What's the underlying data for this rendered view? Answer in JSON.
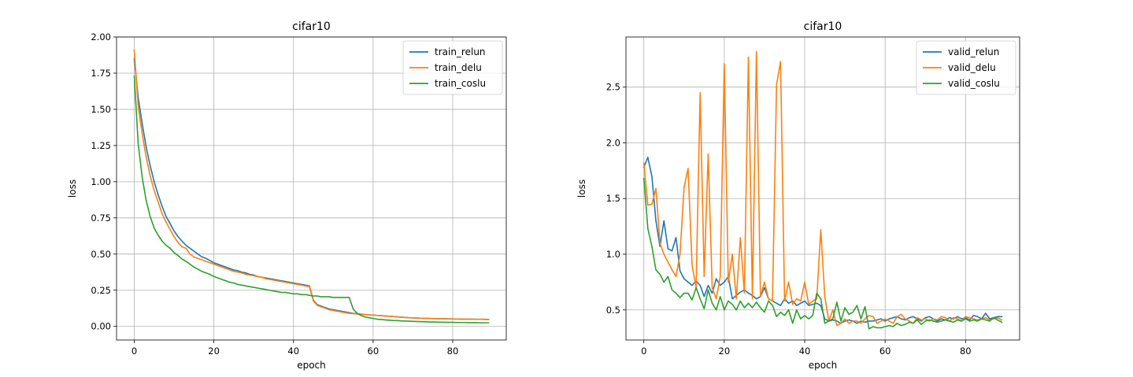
{
  "chart_data": [
    {
      "type": "line",
      "title": "cifar10",
      "xlabel": "epoch",
      "ylabel": "loss",
      "xlim": [
        -4.45,
        93.45
      ],
      "ylim": [
        -0.094,
        2.0
      ],
      "xticks": [
        0,
        20,
        40,
        60,
        80
      ],
      "xtick_labels": [
        "0",
        "20",
        "40",
        "60",
        "80"
      ],
      "yticks": [
        0.0,
        0.25,
        0.5,
        0.75,
        1.0,
        1.25,
        1.5,
        1.75,
        2.0
      ],
      "ytick_labels": [
        "0.00",
        "0.25",
        "0.50",
        "0.75",
        "1.00",
        "1.25",
        "1.50",
        "1.75",
        "2.00"
      ],
      "grid": true,
      "legend_position": "top-right",
      "series": [
        {
          "name": "train_relun",
          "color": "#1f77b4",
          "values": [
            1.85,
            1.58,
            1.4,
            1.24,
            1.11,
            1.0,
            0.91,
            0.83,
            0.76,
            0.71,
            0.66,
            0.62,
            0.59,
            0.56,
            0.54,
            0.52,
            0.5,
            0.48,
            0.47,
            0.455,
            0.44,
            0.43,
            0.42,
            0.41,
            0.4,
            0.39,
            0.385,
            0.375,
            0.37,
            0.36,
            0.355,
            0.345,
            0.34,
            0.335,
            0.33,
            0.325,
            0.32,
            0.315,
            0.31,
            0.305,
            0.3,
            0.295,
            0.29,
            0.285,
            0.28,
            0.18,
            0.15,
            0.14,
            0.13,
            0.12,
            0.115,
            0.11,
            0.105,
            0.1,
            0.095,
            0.09,
            0.088,
            0.085,
            0.082,
            0.08,
            0.078,
            0.076,
            0.074,
            0.072,
            0.07,
            0.068,
            0.066,
            0.064,
            0.062,
            0.06,
            0.059,
            0.058,
            0.057,
            0.056,
            0.055,
            0.054,
            0.054,
            0.053,
            0.053,
            0.052,
            0.052,
            0.051,
            0.051,
            0.05,
            0.05,
            0.05,
            0.049,
            0.049,
            0.049,
            0.048
          ]
        },
        {
          "name": "train_delu",
          "color": "#ff7f0e",
          "values": [
            1.91,
            1.52,
            1.33,
            1.17,
            1.04,
            0.94,
            0.86,
            0.78,
            0.72,
            0.67,
            0.62,
            0.58,
            0.55,
            0.54,
            0.5,
            0.48,
            0.47,
            0.46,
            0.45,
            0.44,
            0.43,
            0.42,
            0.41,
            0.4,
            0.39,
            0.38,
            0.375,
            0.37,
            0.36,
            0.355,
            0.35,
            0.345,
            0.34,
            0.33,
            0.325,
            0.32,
            0.315,
            0.31,
            0.305,
            0.3,
            0.295,
            0.29,
            0.285,
            0.28,
            0.275,
            0.175,
            0.145,
            0.135,
            0.125,
            0.115,
            0.11,
            0.105,
            0.1,
            0.095,
            0.09,
            0.088,
            0.086,
            0.084,
            0.082,
            0.08,
            0.078,
            0.076,
            0.074,
            0.072,
            0.07,
            0.068,
            0.066,
            0.064,
            0.062,
            0.06,
            0.059,
            0.058,
            0.057,
            0.056,
            0.055,
            0.054,
            0.053,
            0.053,
            0.052,
            0.052,
            0.051,
            0.051,
            0.05,
            0.05,
            0.05,
            0.049,
            0.049,
            0.049,
            0.048,
            0.048
          ]
        },
        {
          "name": "train_coslu",
          "color": "#2ca02c",
          "values": [
            1.73,
            1.26,
            1.03,
            0.87,
            0.76,
            0.68,
            0.63,
            0.59,
            0.56,
            0.54,
            0.51,
            0.49,
            0.465,
            0.45,
            0.43,
            0.41,
            0.395,
            0.38,
            0.37,
            0.36,
            0.345,
            0.335,
            0.325,
            0.315,
            0.305,
            0.3,
            0.29,
            0.285,
            0.28,
            0.275,
            0.27,
            0.265,
            0.26,
            0.255,
            0.25,
            0.245,
            0.24,
            0.235,
            0.235,
            0.23,
            0.225,
            0.225,
            0.22,
            0.22,
            0.215,
            0.21,
            0.21,
            0.205,
            0.205,
            0.205,
            0.2,
            0.2,
            0.2,
            0.2,
            0.2,
            0.12,
            0.09,
            0.075,
            0.065,
            0.06,
            0.055,
            0.05,
            0.048,
            0.045,
            0.043,
            0.041,
            0.04,
            0.038,
            0.037,
            0.036,
            0.035,
            0.034,
            0.033,
            0.032,
            0.031,
            0.03,
            0.03,
            0.029,
            0.029,
            0.028,
            0.028,
            0.027,
            0.027,
            0.027,
            0.026,
            0.026,
            0.026,
            0.025,
            0.025,
            0.025
          ]
        }
      ]
    },
    {
      "type": "line",
      "title": "cifar10",
      "xlabel": "epoch",
      "ylabel": "loss",
      "xlim": [
        -4.45,
        93.45
      ],
      "ylim": [
        0.23,
        2.95
      ],
      "xticks": [
        0,
        20,
        40,
        60,
        80
      ],
      "xtick_labels": [
        "0",
        "20",
        "40",
        "60",
        "80"
      ],
      "yticks": [
        0.5,
        1.0,
        1.5,
        2.0,
        2.5
      ],
      "ytick_labels": [
        "0.5",
        "1.0",
        "1.5",
        "2.0",
        "2.5"
      ],
      "grid": true,
      "legend_position": "top-right",
      "series": [
        {
          "name": "valid_relun",
          "color": "#1f77b4",
          "values": [
            1.78,
            1.87,
            1.7,
            1.3,
            1.07,
            1.3,
            1.05,
            1.03,
            1.15,
            0.85,
            0.78,
            0.75,
            0.72,
            0.76,
            0.72,
            0.62,
            0.72,
            0.65,
            0.78,
            0.72,
            0.75,
            0.8,
            0.6,
            0.63,
            0.66,
            0.68,
            0.65,
            0.63,
            0.6,
            0.62,
            0.7,
            0.6,
            0.58,
            0.56,
            0.54,
            0.6,
            0.56,
            0.58,
            0.54,
            0.56,
            0.58,
            0.54,
            0.55,
            0.56,
            0.54,
            0.42,
            0.4,
            0.41,
            0.4,
            0.38,
            0.4,
            0.41,
            0.4,
            0.38,
            0.4,
            0.39,
            0.4,
            0.4,
            0.41,
            0.42,
            0.4,
            0.42,
            0.43,
            0.44,
            0.42,
            0.41,
            0.43,
            0.44,
            0.42,
            0.4,
            0.43,
            0.44,
            0.42,
            0.4,
            0.42,
            0.41,
            0.43,
            0.42,
            0.44,
            0.42,
            0.43,
            0.41,
            0.45,
            0.44,
            0.42,
            0.47,
            0.42,
            0.43,
            0.44,
            0.44
          ]
        },
        {
          "name": "valid_delu",
          "color": "#ff7f0e",
          "values": [
            1.82,
            1.44,
            1.45,
            1.59,
            1.1,
            1.0,
            0.93,
            0.86,
            0.8,
            1.0,
            1.6,
            1.77,
            0.9,
            0.7,
            2.45,
            0.8,
            1.9,
            0.7,
            0.6,
            0.8,
            2.71,
            0.75,
            1.0,
            0.6,
            1.15,
            0.65,
            2.77,
            0.6,
            2.82,
            0.62,
            0.75,
            0.6,
            0.58,
            2.52,
            2.73,
            0.58,
            0.75,
            0.55,
            0.6,
            0.58,
            0.75,
            0.55,
            0.58,
            0.6,
            1.22,
            0.62,
            0.4,
            0.5,
            0.36,
            0.38,
            0.42,
            0.38,
            0.4,
            0.4,
            0.38,
            0.42,
            0.45,
            0.44,
            0.38,
            0.4,
            0.42,
            0.4,
            0.38,
            0.44,
            0.46,
            0.42,
            0.4,
            0.38,
            0.43,
            0.41,
            0.42,
            0.4,
            0.42,
            0.41,
            0.44,
            0.43,
            0.4,
            0.43,
            0.42,
            0.4,
            0.44,
            0.43,
            0.42,
            0.41,
            0.42,
            0.43,
            0.41,
            0.42,
            0.43,
            0.41
          ]
        },
        {
          "name": "valid_coslu",
          "color": "#2ca02c",
          "values": [
            1.68,
            1.23,
            1.07,
            0.86,
            0.82,
            0.75,
            0.8,
            0.68,
            0.65,
            0.61,
            0.65,
            0.65,
            0.59,
            0.7,
            0.6,
            0.51,
            0.68,
            0.56,
            0.5,
            0.62,
            0.5,
            0.58,
            0.55,
            0.5,
            0.58,
            0.52,
            0.56,
            0.52,
            0.57,
            0.52,
            0.48,
            0.58,
            0.54,
            0.44,
            0.48,
            0.45,
            0.5,
            0.38,
            0.5,
            0.42,
            0.45,
            0.42,
            0.45,
            0.65,
            0.6,
            0.38,
            0.4,
            0.42,
            0.57,
            0.4,
            0.52,
            0.46,
            0.48,
            0.54,
            0.42,
            0.53,
            0.33,
            0.35,
            0.34,
            0.34,
            0.35,
            0.36,
            0.35,
            0.38,
            0.36,
            0.37,
            0.39,
            0.38,
            0.41,
            0.37,
            0.4,
            0.41,
            0.4,
            0.39,
            0.4,
            0.41,
            0.4,
            0.39,
            0.41,
            0.4,
            0.42,
            0.4,
            0.41,
            0.4,
            0.42,
            0.41,
            0.4,
            0.43,
            0.41,
            0.39
          ]
        }
      ]
    }
  ]
}
